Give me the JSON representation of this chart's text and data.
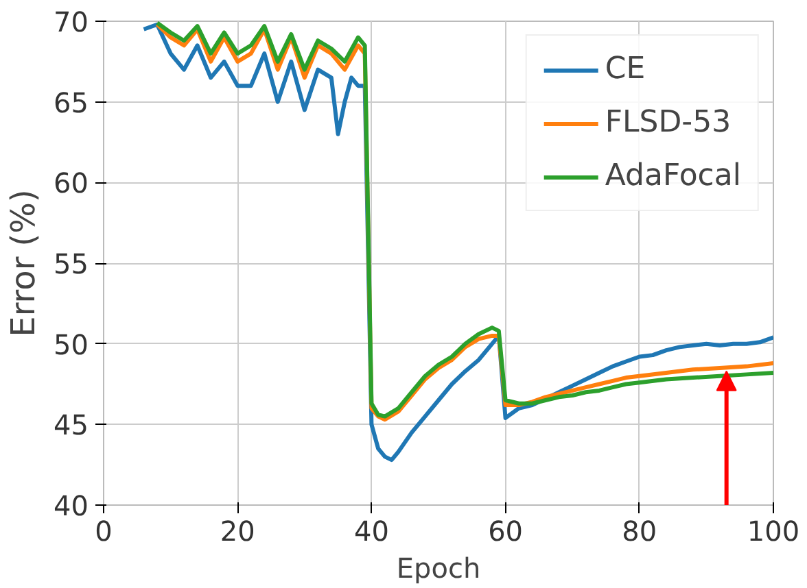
{
  "chart_data": {
    "type": "line",
    "xlabel": "Epoch",
    "ylabel": "Error (%)",
    "xlim": [
      0,
      100
    ],
    "ylim": [
      40,
      70
    ],
    "xticks": [
      0,
      20,
      40,
      60,
      80,
      100
    ],
    "yticks": [
      40,
      45,
      50,
      55,
      60,
      65,
      70
    ],
    "grid": true,
    "legend": "top right",
    "series": [
      {
        "name": "CE",
        "color": "#1f77b4",
        "x": [
          6,
          8,
          10,
          12,
          14,
          16,
          18,
          20,
          22,
          24,
          26,
          28,
          30,
          32,
          34,
          35,
          36,
          37,
          38,
          39,
          40,
          41,
          42,
          43,
          44,
          46,
          48,
          50,
          52,
          54,
          56,
          58,
          59,
          60,
          62,
          64,
          66,
          68,
          70,
          72,
          74,
          76,
          78,
          80,
          82,
          84,
          86,
          88,
          90,
          92,
          94,
          96,
          98,
          100
        ],
        "values": [
          69.5,
          69.8,
          68,
          67,
          68.5,
          66.5,
          67.5,
          66,
          66,
          68,
          65,
          67.5,
          64.5,
          67,
          66.5,
          63,
          65,
          66.5,
          66,
          66,
          45,
          43.5,
          43,
          42.8,
          43.3,
          44.5,
          45.5,
          46.5,
          47.5,
          48.3,
          49,
          50,
          50.5,
          45.4,
          46,
          46.2,
          46.6,
          47,
          47.4,
          47.8,
          48.2,
          48.6,
          48.9,
          49.2,
          49.3,
          49.6,
          49.8,
          49.9,
          50,
          49.9,
          50,
          50,
          50.1,
          50.4
        ]
      },
      {
        "name": "FLSD-53",
        "color": "#ff7f0e",
        "x": [
          8,
          10,
          12,
          14,
          16,
          18,
          20,
          22,
          24,
          26,
          28,
          30,
          32,
          34,
          36,
          38,
          39,
          40,
          41,
          42,
          44,
          46,
          48,
          50,
          52,
          54,
          56,
          58,
          59,
          60,
          62,
          64,
          66,
          68,
          70,
          72,
          74,
          76,
          78,
          80,
          84,
          88,
          92,
          96,
          100
        ],
        "values": [
          69.8,
          69,
          68.5,
          69.5,
          67.5,
          69,
          67.5,
          68,
          69.5,
          67,
          69,
          66.5,
          68.5,
          68,
          67,
          68.5,
          68,
          46,
          45.5,
          45.3,
          45.8,
          46.8,
          47.8,
          48.5,
          49,
          49.8,
          50.3,
          50.5,
          50.5,
          46.2,
          46.2,
          46.4,
          46.7,
          46.9,
          47.1,
          47.3,
          47.5,
          47.7,
          47.9,
          48,
          48.2,
          48.4,
          48.5,
          48.6,
          48.8
        ]
      },
      {
        "name": "AdaFocal",
        "color": "#2ca02c",
        "x": [
          8,
          10,
          12,
          14,
          16,
          18,
          20,
          22,
          24,
          26,
          28,
          30,
          32,
          34,
          36,
          38,
          39,
          40,
          41,
          42,
          44,
          46,
          48,
          50,
          52,
          54,
          56,
          58,
          59,
          60,
          62,
          64,
          66,
          68,
          70,
          72,
          74,
          76,
          78,
          80,
          84,
          88,
          92,
          96,
          100
        ],
        "values": [
          69.9,
          69.3,
          68.8,
          69.7,
          68,
          69.3,
          68,
          68.5,
          69.7,
          67.5,
          69.2,
          67,
          68.8,
          68.3,
          67.5,
          69,
          68.5,
          46.3,
          45.6,
          45.5,
          46,
          47,
          48,
          48.7,
          49.2,
          50,
          50.6,
          51,
          50.8,
          46.5,
          46.3,
          46.3,
          46.5,
          46.7,
          46.8,
          47,
          47.1,
          47.3,
          47.5,
          47.6,
          47.8,
          47.9,
          48,
          48.1,
          48.2
        ]
      }
    ]
  }
}
